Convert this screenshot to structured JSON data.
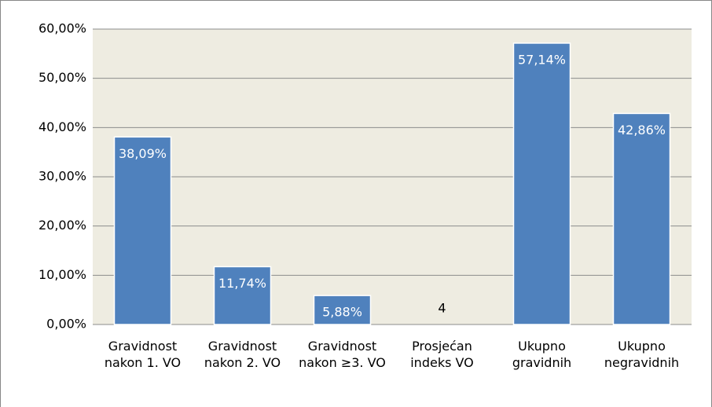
{
  "chart_data": {
    "type": "bar",
    "categories": [
      "Gravidnost nakon  1. VO",
      "Gravidnost nakon 2. VO",
      "Gravidnost nakon ≥3. VO",
      "Prosjećan indeks VO",
      "Ukupno gravidnih",
      "Ukupno negravidnih"
    ],
    "values": [
      38.09,
      11.74,
      5.88,
      null,
      57.14,
      42.86
    ],
    "value_labels": [
      "38,09%",
      "11,74%",
      "5,88%",
      "4",
      "57,14%",
      "42,86%"
    ],
    "color": "#4f81bd",
    "ylim": [
      0,
      60
    ],
    "yticks": [
      {
        "value": 0,
        "label": "0,00%"
      },
      {
        "value": 10,
        "label": "10,00%"
      },
      {
        "value": 20,
        "label": "20,00%"
      },
      {
        "value": 30,
        "label": "30,00%"
      },
      {
        "value": 40,
        "label": "40,00%"
      },
      {
        "value": 50,
        "label": "50,00%"
      },
      {
        "value": 60,
        "label": "60,00%"
      }
    ],
    "grid": true
  }
}
